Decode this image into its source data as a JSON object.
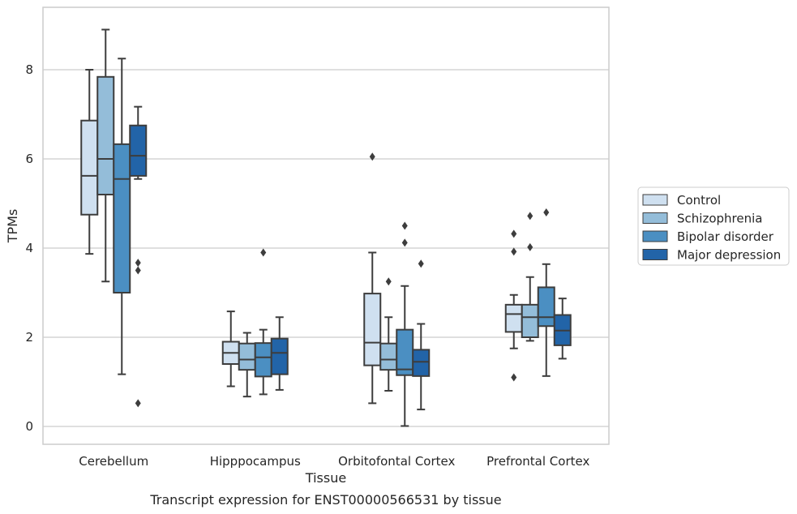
{
  "caption": "Transcript expression for ENST00000566531 by tissue",
  "colors": {
    "Control": "#cfe0f0",
    "Schizophrenia": "#94bdd9",
    "Bipolar disorder": "#4b8fc2",
    "Major depression": "#2264a8",
    "box_edge": "#3d3d3d",
    "grid": "#cccccc",
    "frame": "#cccccc"
  },
  "chart_data": {
    "type": "box",
    "xlabel": "Tissue",
    "ylabel": "TPMs",
    "ylim": [
      -0.4,
      9.4
    ],
    "yticks": [
      0,
      2,
      4,
      6,
      8
    ],
    "grid": "horizontal",
    "legend_position": "right-outside",
    "categories": [
      "Cerebellum",
      "Hipppocampus",
      "Orbitofontal Cortex",
      "Prefrontal Cortex"
    ],
    "series": [
      {
        "name": "Control",
        "boxes": [
          {
            "whislo": 3.87,
            "q1": 4.75,
            "med": 5.62,
            "q3": 6.86,
            "whishi": 8.0,
            "fliers": []
          },
          {
            "whislo": 0.9,
            "q1": 1.4,
            "med": 1.65,
            "q3": 1.9,
            "whishi": 2.58,
            "fliers": []
          },
          {
            "whislo": 0.52,
            "q1": 1.37,
            "med": 1.88,
            "q3": 2.98,
            "whishi": 3.9,
            "fliers": [
              6.05
            ]
          },
          {
            "whislo": 1.75,
            "q1": 2.12,
            "med": 2.52,
            "q3": 2.73,
            "whishi": 2.95,
            "fliers": [
              4.32,
              3.92,
              1.1
            ]
          }
        ]
      },
      {
        "name": "Schizophrenia",
        "boxes": [
          {
            "whislo": 3.25,
            "q1": 5.2,
            "med": 6.0,
            "q3": 7.84,
            "whishi": 8.9,
            "fliers": []
          },
          {
            "whislo": 0.67,
            "q1": 1.27,
            "med": 1.5,
            "q3": 1.86,
            "whishi": 2.1,
            "fliers": []
          },
          {
            "whislo": 0.8,
            "q1": 1.27,
            "med": 1.5,
            "q3": 1.86,
            "whishi": 2.45,
            "fliers": [
              3.25
            ]
          },
          {
            "whislo": 1.92,
            "q1": 2.0,
            "med": 2.45,
            "q3": 2.73,
            "whishi": 3.35,
            "fliers": [
              4.72,
              4.02
            ]
          }
        ]
      },
      {
        "name": "Bipolar disorder",
        "boxes": [
          {
            "whislo": 1.17,
            "q1": 3.0,
            "med": 5.55,
            "q3": 6.33,
            "whishi": 8.25,
            "fliers": []
          },
          {
            "whislo": 0.72,
            "q1": 1.12,
            "med": 1.55,
            "q3": 1.87,
            "whishi": 2.17,
            "fliers": [
              3.9
            ]
          },
          {
            "whislo": 0.01,
            "q1": 1.15,
            "med": 1.28,
            "q3": 2.17,
            "whishi": 3.15,
            "fliers": [
              4.5,
              4.12
            ]
          },
          {
            "whislo": 1.13,
            "q1": 2.25,
            "med": 2.45,
            "q3": 3.12,
            "whishi": 3.64,
            "fliers": [
              4.8
            ]
          }
        ]
      },
      {
        "name": "Major depression",
        "boxes": [
          {
            "whislo": 5.55,
            "q1": 5.62,
            "med": 6.07,
            "q3": 6.75,
            "whishi": 7.17,
            "fliers": [
              3.67,
              3.5,
              0.52
            ]
          },
          {
            "whislo": 0.82,
            "q1": 1.17,
            "med": 1.65,
            "q3": 1.97,
            "whishi": 2.45,
            "fliers": []
          },
          {
            "whislo": 0.38,
            "q1": 1.13,
            "med": 1.45,
            "q3": 1.72,
            "whishi": 2.3,
            "fliers": [
              3.65
            ]
          },
          {
            "whislo": 1.52,
            "q1": 1.82,
            "med": 2.15,
            "q3": 2.5,
            "whishi": 2.87,
            "fliers": []
          }
        ]
      }
    ]
  }
}
